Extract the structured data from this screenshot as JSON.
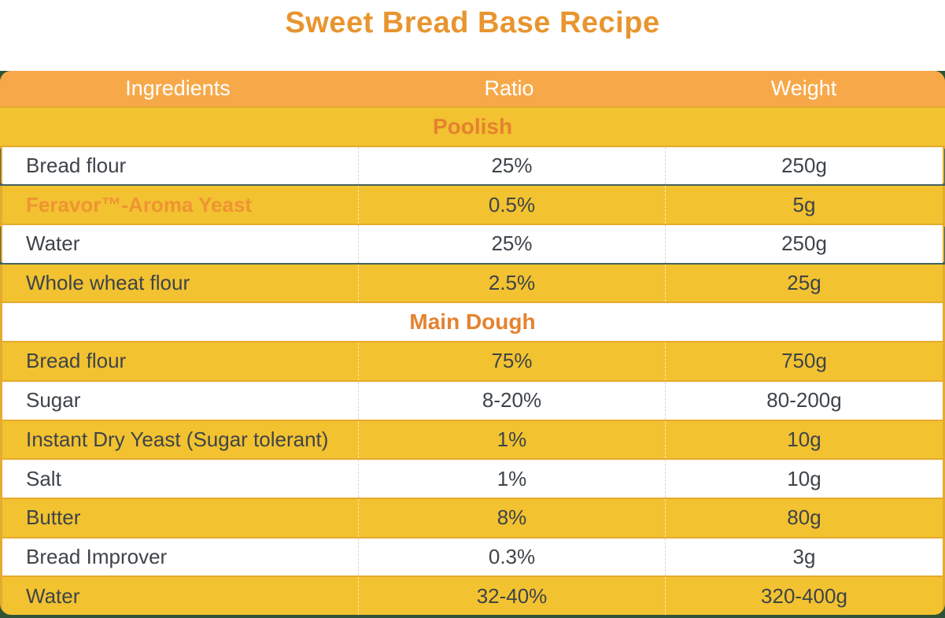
{
  "page": {
    "title": "Sweet Bread Base Recipe"
  },
  "colors": {
    "title_orange": "#E8952F",
    "header_bg": "#F7A94A",
    "row_yellow": "#F2C230",
    "card_mustard": "#E5AB2E",
    "section_label_orange": "#E5822F",
    "brand_highlight_orange": "#EF9433",
    "body_text": "#3E4449",
    "dark_green_edge": "#2D5437",
    "separator_line": "#46615A",
    "header_text": "#FFFFFF"
  },
  "table": {
    "columns": [
      {
        "label": "Ingredients"
      },
      {
        "label": "Ratio"
      },
      {
        "label": "Weight"
      }
    ],
    "sections": [
      {
        "name": "Poolish",
        "rows": [
          {
            "ingredient": "Bread flour",
            "ratio": "25%",
            "weight": "250g"
          },
          {
            "ingredient": "Feravor™-Aroma Yeast",
            "ratio": "0.5%",
            "weight": "5g"
          },
          {
            "ingredient": "Water",
            "ratio": "25%",
            "weight": "250g"
          },
          {
            "ingredient": "Whole wheat flour",
            "ratio": "2.5%",
            "weight": "25g"
          }
        ]
      },
      {
        "name": "Main Dough",
        "rows": [
          {
            "ingredient": "Bread flour",
            "ratio": "75%",
            "weight": "750g"
          },
          {
            "ingredient": "Sugar",
            "ratio": "8-20%",
            "weight": "80-200g"
          },
          {
            "ingredient": "Instant Dry Yeast (Sugar tolerant)",
            "ratio": "1%",
            "weight": "10g"
          },
          {
            "ingredient": "Salt",
            "ratio": "1%",
            "weight": "10g"
          },
          {
            "ingredient": "Butter",
            "ratio": "8%",
            "weight": "80g"
          },
          {
            "ingredient": "Bread Improver",
            "ratio": "0.3%",
            "weight": "3g"
          },
          {
            "ingredient": "Water",
            "ratio": "32-40%",
            "weight": "320-400g"
          }
        ]
      }
    ]
  }
}
